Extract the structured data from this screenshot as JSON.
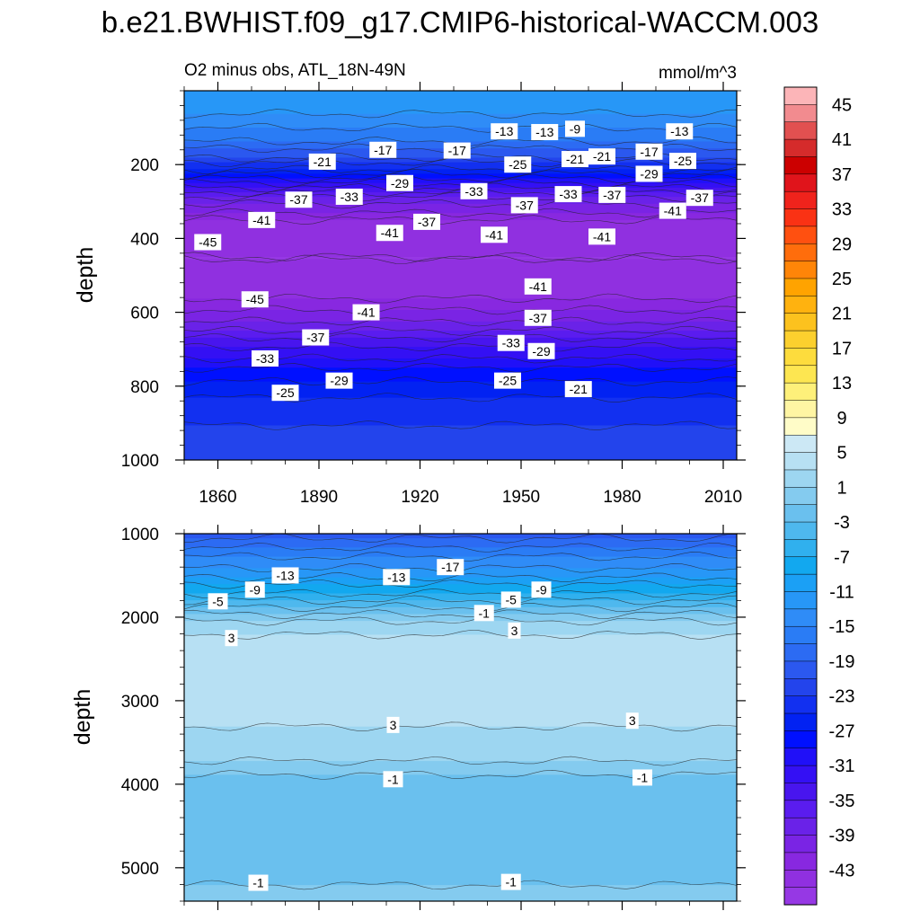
{
  "title": "b.e21.BWHIST.f09_g17.CMIP6-historical-WACCM.003",
  "chart_data": {
    "type": "contour",
    "variable": "O2 minus obs, ATL_18N-49N",
    "units": "mmol/m^3",
    "x": {
      "label": "",
      "range": [
        1850,
        2014
      ],
      "ticks": [
        "1860",
        "1890",
        "1920",
        "1950",
        "1980",
        "2010"
      ]
    },
    "colorbar": {
      "min": -47,
      "max": 47,
      "step": 2,
      "labels": [
        "45",
        "41",
        "37",
        "33",
        "29",
        "25",
        "21",
        "17",
        "13",
        "9",
        "5",
        "1",
        "-3",
        "-7",
        "-11",
        "-15",
        "-19",
        "-23",
        "-27",
        "-31",
        "-35",
        "-39",
        "-43"
      ]
    },
    "panels": [
      {
        "name": "upper",
        "ylabel": "depth",
        "yrange": [
          0,
          1000
        ],
        "yticks": [
          "200",
          "400",
          "600",
          "800",
          "1000"
        ],
        "depth_profile": [
          {
            "depth": 0,
            "value": -12
          },
          {
            "depth": 60,
            "value": -13
          },
          {
            "depth": 120,
            "value": -16
          },
          {
            "depth": 180,
            "value": -21
          },
          {
            "depth": 240,
            "value": -30
          },
          {
            "depth": 290,
            "value": -38
          },
          {
            "depth": 350,
            "value": -43
          },
          {
            "depth": 450,
            "value": -45
          },
          {
            "depth": 540,
            "value": -44
          },
          {
            "depth": 610,
            "value": -40
          },
          {
            "depth": 680,
            "value": -34
          },
          {
            "depth": 760,
            "value": -28
          },
          {
            "depth": 850,
            "value": -24
          },
          {
            "depth": 1000,
            "value": -21
          }
        ],
        "contour_labels": [
          {
            "text": "-13",
            "year": 1945,
            "depth": 110
          },
          {
            "text": "-13",
            "year": 1957,
            "depth": 112
          },
          {
            "text": "-9",
            "year": 1966,
            "depth": 103
          },
          {
            "text": "-13",
            "year": 1997,
            "depth": 110
          },
          {
            "text": "-17",
            "year": 1909,
            "depth": 160
          },
          {
            "text": "-17",
            "year": 1931,
            "depth": 162
          },
          {
            "text": "-21",
            "year": 1891,
            "depth": 192
          },
          {
            "text": "-21",
            "year": 1966,
            "depth": 185
          },
          {
            "text": "-21",
            "year": 1974,
            "depth": 178
          },
          {
            "text": "-17",
            "year": 1988,
            "depth": 165
          },
          {
            "text": "-25",
            "year": 1949,
            "depth": 200
          },
          {
            "text": "-25",
            "year": 1998,
            "depth": 190
          },
          {
            "text": "-29",
            "year": 1988,
            "depth": 225
          },
          {
            "text": "-29",
            "year": 1914,
            "depth": 250
          },
          {
            "text": "-37",
            "year": 1884,
            "depth": 295
          },
          {
            "text": "-33",
            "year": 1899,
            "depth": 287
          },
          {
            "text": "-33",
            "year": 1936,
            "depth": 272
          },
          {
            "text": "-37",
            "year": 1951,
            "depth": 310
          },
          {
            "text": "-33",
            "year": 1964,
            "depth": 280
          },
          {
            "text": "-37",
            "year": 1977,
            "depth": 282
          },
          {
            "text": "-41",
            "year": 1995,
            "depth": 325
          },
          {
            "text": "-37",
            "year": 2003,
            "depth": 290
          },
          {
            "text": "-41",
            "year": 1873,
            "depth": 350
          },
          {
            "text": "-37",
            "year": 1922,
            "depth": 355
          },
          {
            "text": "-45",
            "year": 1857,
            "depth": 410
          },
          {
            "text": "-41",
            "year": 1911,
            "depth": 385
          },
          {
            "text": "-41",
            "year": 1942,
            "depth": 390
          },
          {
            "text": "-41",
            "year": 1974,
            "depth": 395
          },
          {
            "text": "-45",
            "year": 1871,
            "depth": 565
          },
          {
            "text": "-41",
            "year": 1955,
            "depth": 530
          },
          {
            "text": "-41",
            "year": 1904,
            "depth": 600
          },
          {
            "text": "-37",
            "year": 1955,
            "depth": 615
          },
          {
            "text": "-37",
            "year": 1889,
            "depth": 668
          },
          {
            "text": "-33",
            "year": 1874,
            "depth": 725
          },
          {
            "text": "-33",
            "year": 1947,
            "depth": 683
          },
          {
            "text": "-29",
            "year": 1956,
            "depth": 705
          },
          {
            "text": "-29",
            "year": 1896,
            "depth": 785
          },
          {
            "text": "-25",
            "year": 1946,
            "depth": 785
          },
          {
            "text": "-25",
            "year": 1880,
            "depth": 818
          },
          {
            "text": "-21",
            "year": 1967,
            "depth": 808
          }
        ]
      },
      {
        "name": "lower",
        "ylabel": "depth",
        "yrange": [
          1000,
          5400
        ],
        "yticks": [
          "1000",
          "2000",
          "3000",
          "4000",
          "5000"
        ],
        "depth_profile": [
          {
            "depth": 1000,
            "value": -20
          },
          {
            "depth": 1200,
            "value": -16
          },
          {
            "depth": 1450,
            "value": -12
          },
          {
            "depth": 1700,
            "value": -7
          },
          {
            "depth": 1900,
            "value": -2
          },
          {
            "depth": 2050,
            "value": 1.5
          },
          {
            "depth": 2300,
            "value": 4
          },
          {
            "depth": 2700,
            "value": 4.5
          },
          {
            "depth": 3200,
            "value": 3.5
          },
          {
            "depth": 3500,
            "value": 2
          },
          {
            "depth": 3800,
            "value": 0.5
          },
          {
            "depth": 3900,
            "value": -1.5
          },
          {
            "depth": 4200,
            "value": -2.5
          },
          {
            "depth": 4900,
            "value": -2
          },
          {
            "depth": 5200,
            "value": -1
          },
          {
            "depth": 5400,
            "value": 0.5
          }
        ],
        "contour_labels": [
          {
            "text": "-13",
            "year": 1880,
            "depth": 1500
          },
          {
            "text": "-13",
            "year": 1913,
            "depth": 1520
          },
          {
            "text": "-17",
            "year": 1929,
            "depth": 1400
          },
          {
            "text": "-9",
            "year": 1871,
            "depth": 1670
          },
          {
            "text": "-5",
            "year": 1860,
            "depth": 1810
          },
          {
            "text": "-5",
            "year": 1947,
            "depth": 1790
          },
          {
            "text": "-9",
            "year": 1956,
            "depth": 1670
          },
          {
            "text": "-1",
            "year": 1939,
            "depth": 1950
          },
          {
            "text": "3",
            "year": 1864,
            "depth": 2250
          },
          {
            "text": "3",
            "year": 1948,
            "depth": 2160
          },
          {
            "text": "3",
            "year": 1912,
            "depth": 3290
          },
          {
            "text": "3",
            "year": 1983,
            "depth": 3240
          },
          {
            "text": "-1",
            "year": 1912,
            "depth": 3940
          },
          {
            "text": "-1",
            "year": 1986,
            "depth": 3920
          },
          {
            "text": "-1",
            "year": 1872,
            "depth": 5180
          },
          {
            "text": "-1",
            "year": 1947,
            "depth": 5170
          }
        ]
      }
    ]
  }
}
